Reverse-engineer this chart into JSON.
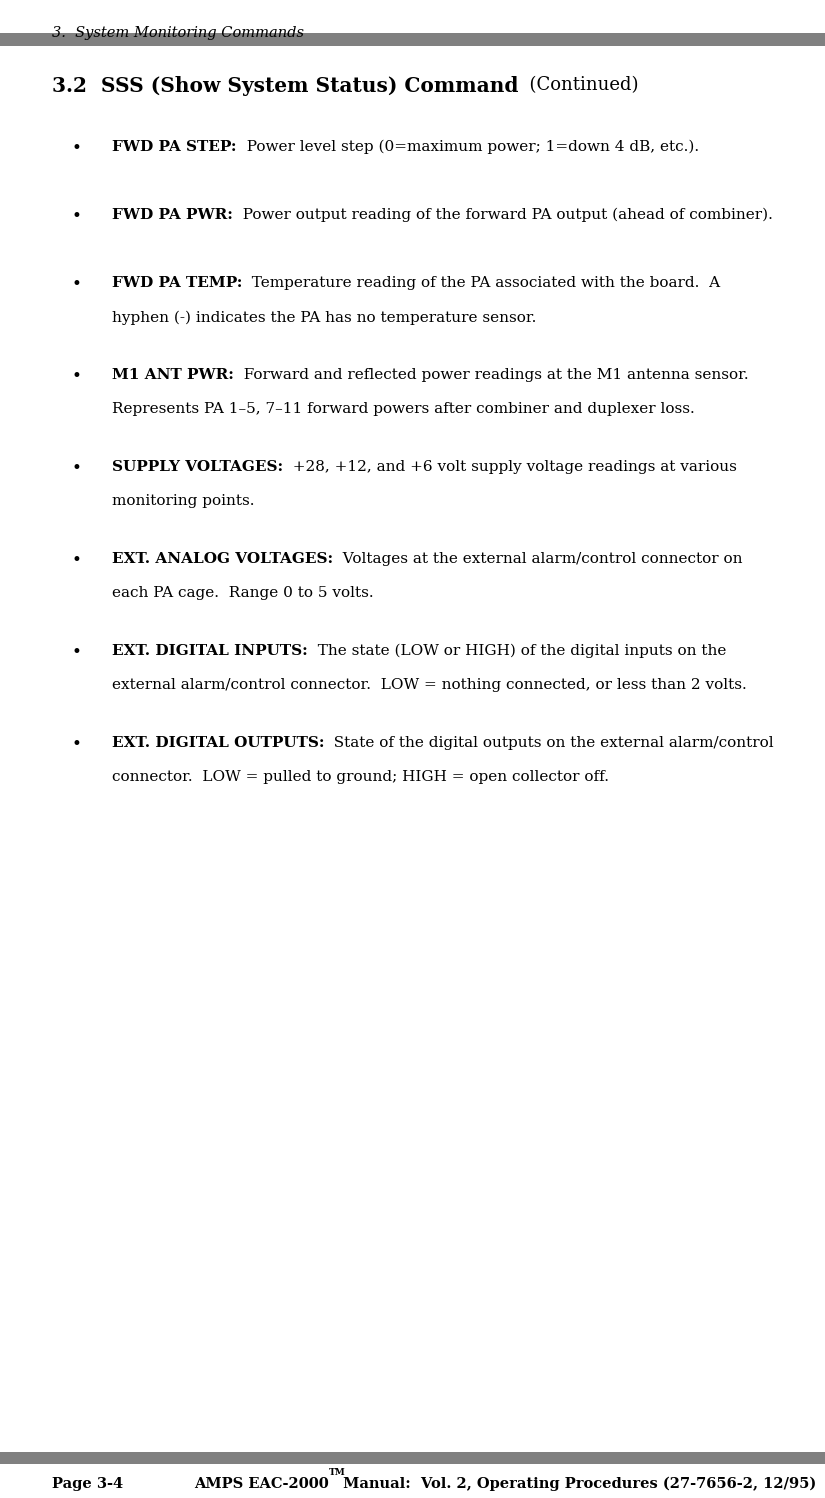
{
  "bg_color": "#ffffff",
  "header_text": "3.  System Monitoring Commands",
  "header_bar_color": "#808080",
  "title_bold": "3.2  SSS (Show System Status) Command",
  "title_normal": "  (Continued)",
  "bullet_items": [
    {
      "label": "FWD PA STEP:",
      "rest": "  Power level step (0=maximum power; 1=down 4 dB, etc.).",
      "continuation": null
    },
    {
      "label": "FWD PA PWR:",
      "rest": "  Power output reading of the forward PA output (ahead of combiner).",
      "continuation": null
    },
    {
      "label": "FWD PA TEMP:",
      "rest": "  Temperature reading of the PA associated with the board.  A",
      "continuation": "hyphen (-) indicates the PA has no temperature sensor."
    },
    {
      "label": "M1 ANT PWR:",
      "rest": "  Forward and reflected power readings at the M1 antenna sensor.",
      "continuation": "Represents PA 1–5, 7–11 forward powers after combiner and duplexer loss."
    },
    {
      "label": "SUPPLY VOLTAGES:",
      "rest": "  +28, +12, and +6 volt supply voltage readings at various",
      "continuation": "monitoring points."
    },
    {
      "label": "EXT. ANALOG VOLTAGES:",
      "rest": "  Voltages at the external alarm/control connector on",
      "continuation": "each PA cage.  Range 0 to 5 volts."
    },
    {
      "label": "EXT. DIGITAL INPUTS:",
      "rest": "  The state (LOW or HIGH) of the digital inputs on the",
      "continuation": "external alarm/control connector.  LOW = nothing connected, or less than 2 volts."
    },
    {
      "label": "EXT. DIGITAL OUTPUTS:",
      "rest": "  State of the digital outputs on the external alarm/control",
      "continuation": "connector.  LOW = pulled to ground; HIGH = open collector off."
    }
  ],
  "footer_bar_color": "#808080",
  "footer_left": "Page 3-4",
  "footer_middle": "AMPS EAC-2000",
  "footer_tm": "TM",
  "footer_right": " Manual:  Vol. 2, Operating Procedures (27-7656-2, 12/95)",
  "text_color": "#000000",
  "font_family": "DejaVu Serif"
}
